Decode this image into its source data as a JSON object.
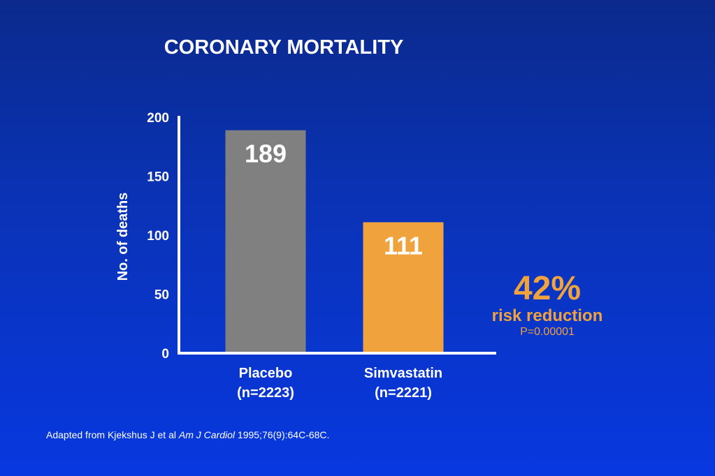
{
  "title": "CORONARY MORTALITY",
  "callout": {
    "percent": "42%",
    "text": "risk reduction",
    "p_value": "P=0.00001"
  },
  "source": {
    "prefix": "Adapted from Kjekshus J et al ",
    "journal": "Am J Cardiol",
    "suffix": " 1995;76(9):64C-68C."
  },
  "chart_data": {
    "type": "bar",
    "title": "CORONARY MORTALITY",
    "ylabel": "No. of deaths",
    "xlabel": "",
    "ylim": [
      0,
      200
    ],
    "yticks": [
      0,
      50,
      100,
      150,
      200
    ],
    "grid": false,
    "categories": [
      {
        "name": "Placebo",
        "sub": "(n=2223)"
      },
      {
        "name": "Simvastatin",
        "sub": "(n=2221)"
      }
    ],
    "values": [
      189,
      111
    ],
    "value_labels": [
      "189",
      "111"
    ],
    "colors": [
      "#808080",
      "#f0a23c"
    ]
  }
}
